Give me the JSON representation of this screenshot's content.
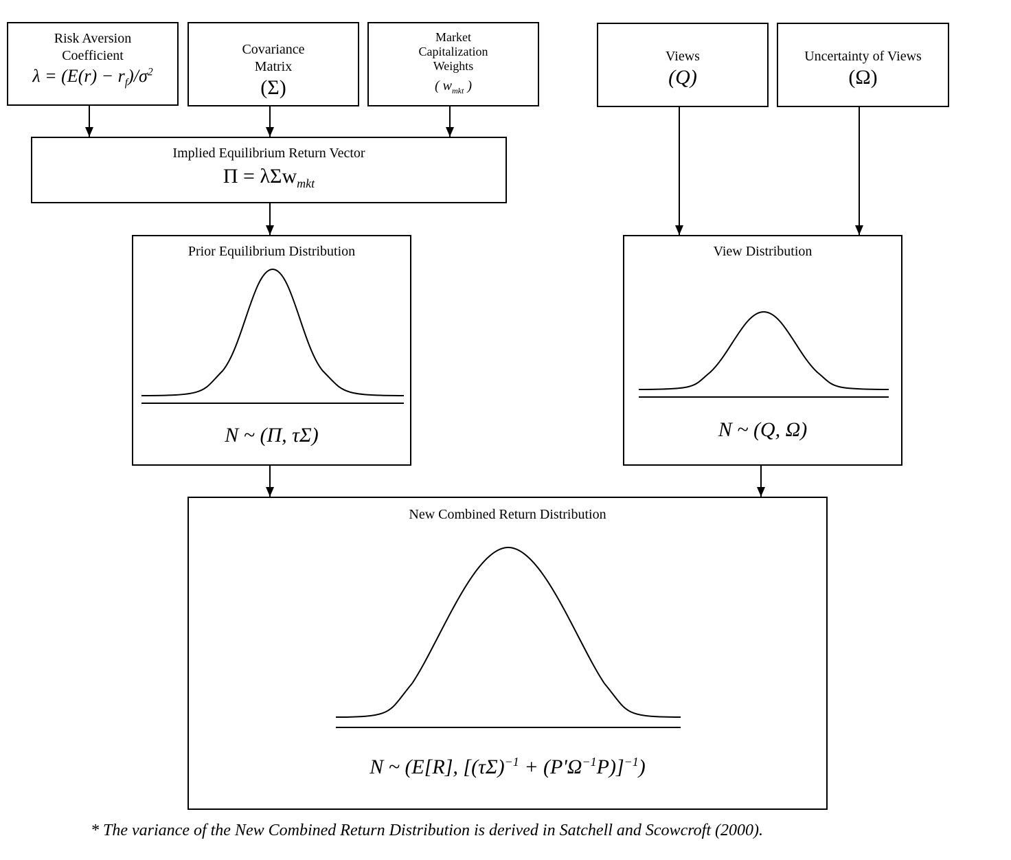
{
  "boxes": {
    "risk_aversion": {
      "title_line1": "Risk Aversion",
      "title_line2": "Coefficient",
      "formula": "λ = (E(r) − r",
      "formula_sub": "f",
      "formula_tail": ")/σ",
      "formula_sup": "2"
    },
    "covariance": {
      "title_line1": "Covariance",
      "title_line2": "Matrix",
      "symbol": "(Σ)"
    },
    "market_cap": {
      "title_line1": "Market",
      "title_line2": "Capitalization",
      "title_line3": "Weights",
      "symbol": "( w",
      "symbol_sub": "mkt",
      "symbol_tail": " )"
    },
    "views": {
      "title": "Views",
      "symbol": "(Q)"
    },
    "uncertainty": {
      "title": "Uncertainty of Views",
      "symbol": "(Ω)"
    },
    "implied_equilibrium": {
      "title": "Implied Equilibrium Return Vector",
      "formula": "Π = λΣw",
      "formula_sub": "mkt"
    },
    "prior_distribution": {
      "title": "Prior Equilibrium Distribution",
      "formula": "N ~ (Π, τΣ)"
    },
    "view_distribution": {
      "title": "View Distribution",
      "formula": "N ~ (Q, Ω)"
    },
    "combined_distribution": {
      "title": "New Combined Return Distribution",
      "formula_a": "N ~ (E[R], [(τΣ)",
      "sup1": "−1",
      "formula_b": " + (P'Ω",
      "sup2": "−1",
      "formula_c": "P)]",
      "sup3": "−1",
      "formula_d": ")"
    }
  },
  "footnote": "* The variance of the New Combined Return Distribution is derived in Satchell and Scowcroft (2000)."
}
